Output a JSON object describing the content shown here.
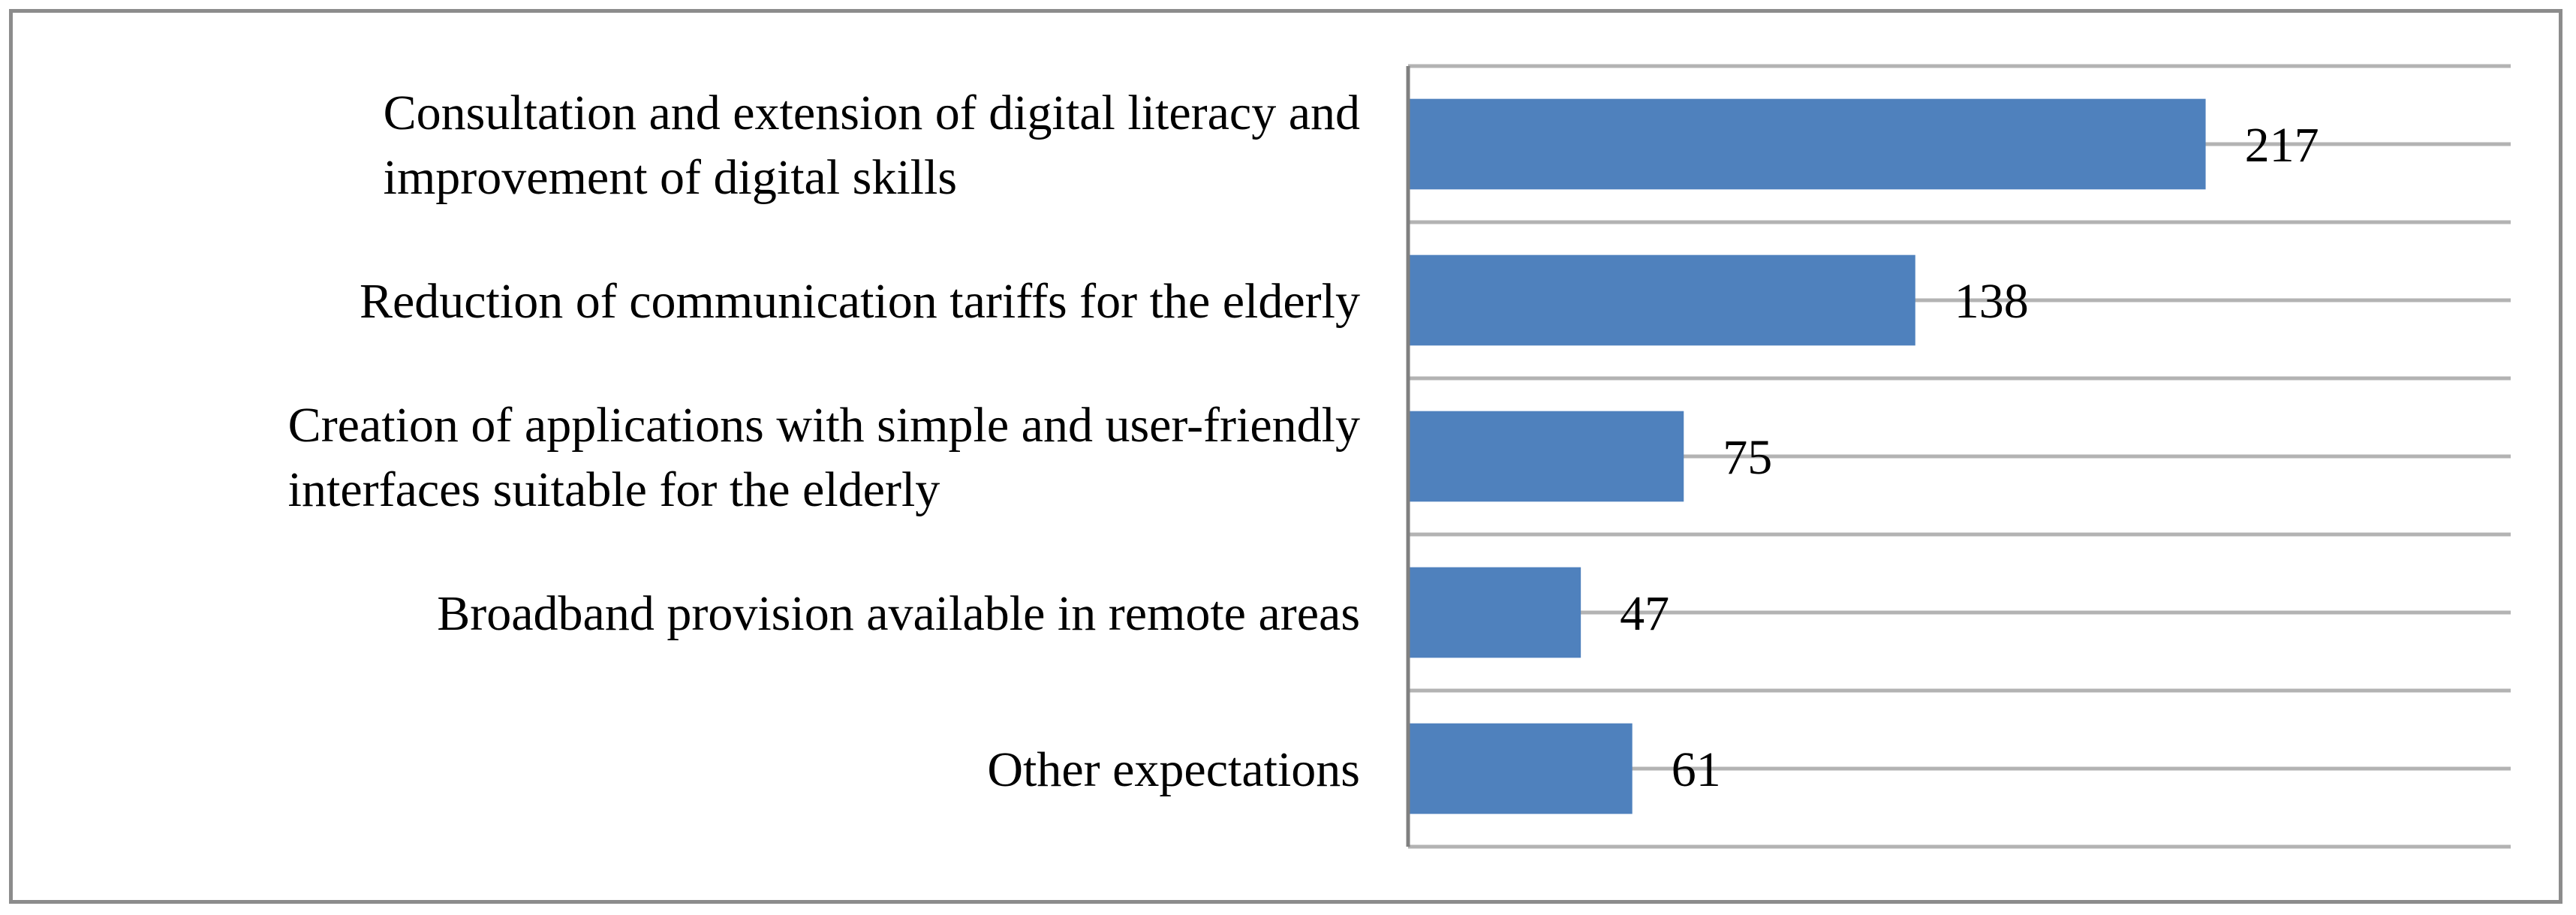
{
  "chart_data": {
    "type": "bar",
    "orientation": "horizontal",
    "categories": [
      [
        "Consultation and extension of digital literacy and",
        "improvement of digital skills"
      ],
      [
        "Reduction of communication tariffs for the elderly"
      ],
      [
        "Creation of applications with simple and user-friendly",
        "interfaces suitable for the elderly"
      ],
      [
        "Broadband provision available in remote areas"
      ],
      [
        "Other expectations"
      ]
    ],
    "values": [
      217,
      138,
      75,
      47,
      61
    ],
    "data_labels": [
      "217",
      "138",
      "75",
      "47",
      "61"
    ],
    "xlim": [
      0,
      300
    ],
    "grid": true,
    "legend": "none",
    "title": "",
    "xlabel": "",
    "ylabel": "",
    "colors": {
      "bar": "#4F81BD",
      "grid": "#B3B3B3",
      "axis": "#808080",
      "frame": "#8C8C8C"
    }
  }
}
